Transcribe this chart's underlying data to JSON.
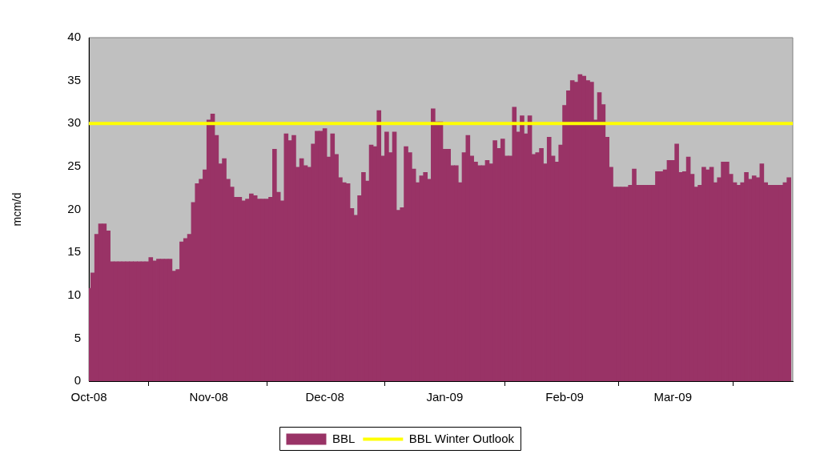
{
  "chart_data": {
    "type": "bar",
    "ylabel": "mcm/d",
    "legend": "bottom",
    "xlim": [
      "2008-10-01",
      "2009-04-01"
    ],
    "xticks": [
      {
        "value": "2008-10-01",
        "label": "Oct-08"
      },
      {
        "value": "2008-11-01",
        "label": "Nov-08"
      },
      {
        "value": "2008-12-01",
        "label": "Dec-08"
      },
      {
        "value": "2009-01-01",
        "label": "Jan-09"
      },
      {
        "value": "2009-02-01",
        "label": "Feb-09"
      },
      {
        "value": "2009-03-01",
        "label": "Mar-09"
      },
      {
        "value": "2009-04-01",
        "label": null
      }
    ],
    "ylim": [
      0,
      40
    ],
    "yticks": [
      0,
      5,
      10,
      15,
      20,
      25,
      30,
      35,
      40
    ],
    "series": [
      {
        "name": "BBL",
        "color": "#993366",
        "x": [
          "2008-10-01",
          "2008-10-02",
          "2008-10-03",
          "2008-10-04",
          "2008-10-05",
          "2008-10-06",
          "2008-10-07",
          "2008-10-08",
          "2008-10-09",
          "2008-10-10",
          "2008-10-11",
          "2008-10-12",
          "2008-10-13",
          "2008-10-14",
          "2008-10-15",
          "2008-10-16",
          "2008-10-17",
          "2008-10-18",
          "2008-10-19",
          "2008-10-20",
          "2008-10-21",
          "2008-10-22",
          "2008-10-23",
          "2008-10-24",
          "2008-10-25",
          "2008-10-26",
          "2008-10-27",
          "2008-10-28",
          "2008-10-29",
          "2008-10-30",
          "2008-10-31",
          "2008-11-01",
          "2008-11-02",
          "2008-11-03",
          "2008-11-04",
          "2008-11-05",
          "2008-11-06",
          "2008-11-07",
          "2008-11-08",
          "2008-11-09",
          "2008-11-10",
          "2008-11-11",
          "2008-11-12",
          "2008-11-13",
          "2008-11-14",
          "2008-11-15",
          "2008-11-16",
          "2008-11-17",
          "2008-11-18",
          "2008-11-19",
          "2008-11-20",
          "2008-11-21",
          "2008-11-22",
          "2008-11-23",
          "2008-11-24",
          "2008-11-25",
          "2008-11-26",
          "2008-11-27",
          "2008-11-28",
          "2008-11-29",
          "2008-11-30",
          "2008-12-01",
          "2008-12-02",
          "2008-12-03",
          "2008-12-04",
          "2008-12-05",
          "2008-12-06",
          "2008-12-07",
          "2008-12-08",
          "2008-12-09",
          "2008-12-10",
          "2008-12-11",
          "2008-12-12",
          "2008-12-13",
          "2008-12-14",
          "2008-12-15",
          "2008-12-16",
          "2008-12-17",
          "2008-12-18",
          "2008-12-19",
          "2008-12-20",
          "2008-12-21",
          "2008-12-22",
          "2008-12-23",
          "2008-12-24",
          "2008-12-25",
          "2008-12-26",
          "2008-12-27",
          "2008-12-28",
          "2008-12-29",
          "2008-12-30",
          "2008-12-31",
          "2009-01-01",
          "2009-01-02",
          "2009-01-03",
          "2009-01-04",
          "2009-01-05",
          "2009-01-06",
          "2009-01-07",
          "2009-01-08",
          "2009-01-09",
          "2009-01-10",
          "2009-01-11",
          "2009-01-12",
          "2009-01-13",
          "2009-01-14",
          "2009-01-15",
          "2009-01-16",
          "2009-01-17",
          "2009-01-18",
          "2009-01-19",
          "2009-01-20",
          "2009-01-21",
          "2009-01-22",
          "2009-01-23",
          "2009-01-24",
          "2009-01-25",
          "2009-01-26",
          "2009-01-27",
          "2009-01-28",
          "2009-01-29",
          "2009-01-30",
          "2009-01-31",
          "2009-02-01",
          "2009-02-02",
          "2009-02-03",
          "2009-02-04",
          "2009-02-05",
          "2009-02-06",
          "2009-02-07",
          "2009-02-08",
          "2009-02-09",
          "2009-02-10",
          "2009-02-11",
          "2009-02-12",
          "2009-02-13",
          "2009-02-14",
          "2009-02-15",
          "2009-02-16",
          "2009-02-17",
          "2009-02-18",
          "2009-02-19",
          "2009-02-20",
          "2009-02-21",
          "2009-02-22",
          "2009-02-23",
          "2009-02-24",
          "2009-02-25",
          "2009-02-26",
          "2009-02-27",
          "2009-02-28",
          "2009-03-01",
          "2009-03-02",
          "2009-03-03",
          "2009-03-04",
          "2009-03-05",
          "2009-03-06",
          "2009-03-07",
          "2009-03-08",
          "2009-03-09",
          "2009-03-10",
          "2009-03-11",
          "2009-03-12",
          "2009-03-13",
          "2009-03-14",
          "2009-03-15",
          "2009-03-16",
          "2009-03-17",
          "2009-03-18",
          "2009-03-19",
          "2009-03-20",
          "2009-03-21",
          "2009-03-22",
          "2009-03-23",
          "2009-03-24",
          "2009-03-25",
          "2009-03-26",
          "2009-03-27",
          "2009-03-28",
          "2009-03-29",
          "2009-03-30",
          "2009-03-31"
        ],
        "values": [
          10.8,
          12.6,
          17.1,
          18.3,
          18.3,
          17.5,
          13.9,
          13.9,
          13.9,
          13.9,
          13.9,
          13.9,
          13.9,
          13.9,
          13.9,
          13.9,
          14.4,
          14.0,
          14.2,
          14.2,
          14.2,
          14.2,
          12.8,
          13.0,
          16.2,
          16.6,
          17.1,
          20.8,
          23.0,
          23.5,
          24.6,
          30.4,
          31.1,
          28.6,
          25.3,
          25.9,
          23.5,
          22.6,
          21.4,
          21.4,
          21.0,
          21.2,
          21.8,
          21.6,
          21.2,
          21.2,
          21.2,
          21.4,
          27.0,
          22.0,
          21.0,
          28.8,
          28.0,
          28.6,
          24.9,
          25.9,
          25.1,
          24.9,
          27.6,
          29.1,
          29.1,
          29.4,
          26.1,
          28.8,
          26.4,
          23.7,
          23.1,
          23.0,
          20.1,
          19.3,
          21.6,
          24.3,
          23.3,
          27.5,
          27.3,
          31.5,
          26.2,
          29.0,
          26.6,
          29.0,
          19.9,
          20.2,
          27.3,
          26.6,
          24.7,
          23.1,
          23.9,
          24.3,
          23.5,
          31.7,
          30.2,
          30.2,
          27.0,
          27.0,
          25.1,
          25.1,
          23.1,
          26.6,
          28.6,
          26.2,
          25.5,
          25.1,
          25.1,
          25.7,
          25.3,
          28.0,
          27.1,
          28.2,
          26.2,
          26.2,
          31.9,
          29.0,
          30.9,
          28.8,
          30.9,
          26.4,
          26.6,
          27.1,
          25.3,
          28.4,
          26.2,
          25.5,
          27.5,
          32.1,
          33.8,
          35.0,
          34.8,
          35.7,
          35.5,
          35.0,
          34.8,
          30.4,
          33.6,
          32.2,
          28.4,
          24.9,
          22.6,
          22.6,
          22.6,
          22.6,
          22.8,
          24.7,
          22.8,
          22.8,
          22.8,
          22.8,
          22.8,
          24.4,
          24.4,
          24.6,
          25.7,
          25.7,
          27.6,
          24.3,
          24.4,
          26.1,
          24.1,
          22.6,
          22.8,
          24.9,
          24.6,
          24.9,
          23.1,
          23.7,
          25.5,
          25.5,
          24.1,
          23.1,
          22.8,
          23.1,
          24.3,
          23.5,
          23.9,
          23.7,
          25.3,
          23.1,
          22.8,
          22.8,
          22.8,
          22.8,
          23.1,
          23.7
        ]
      },
      {
        "name": "BBL Winter Outlook",
        "type": "line",
        "color": "#ffff00",
        "x": [
          "2008-10-01",
          "2009-04-01"
        ],
        "values": [
          30,
          30
        ]
      }
    ]
  }
}
